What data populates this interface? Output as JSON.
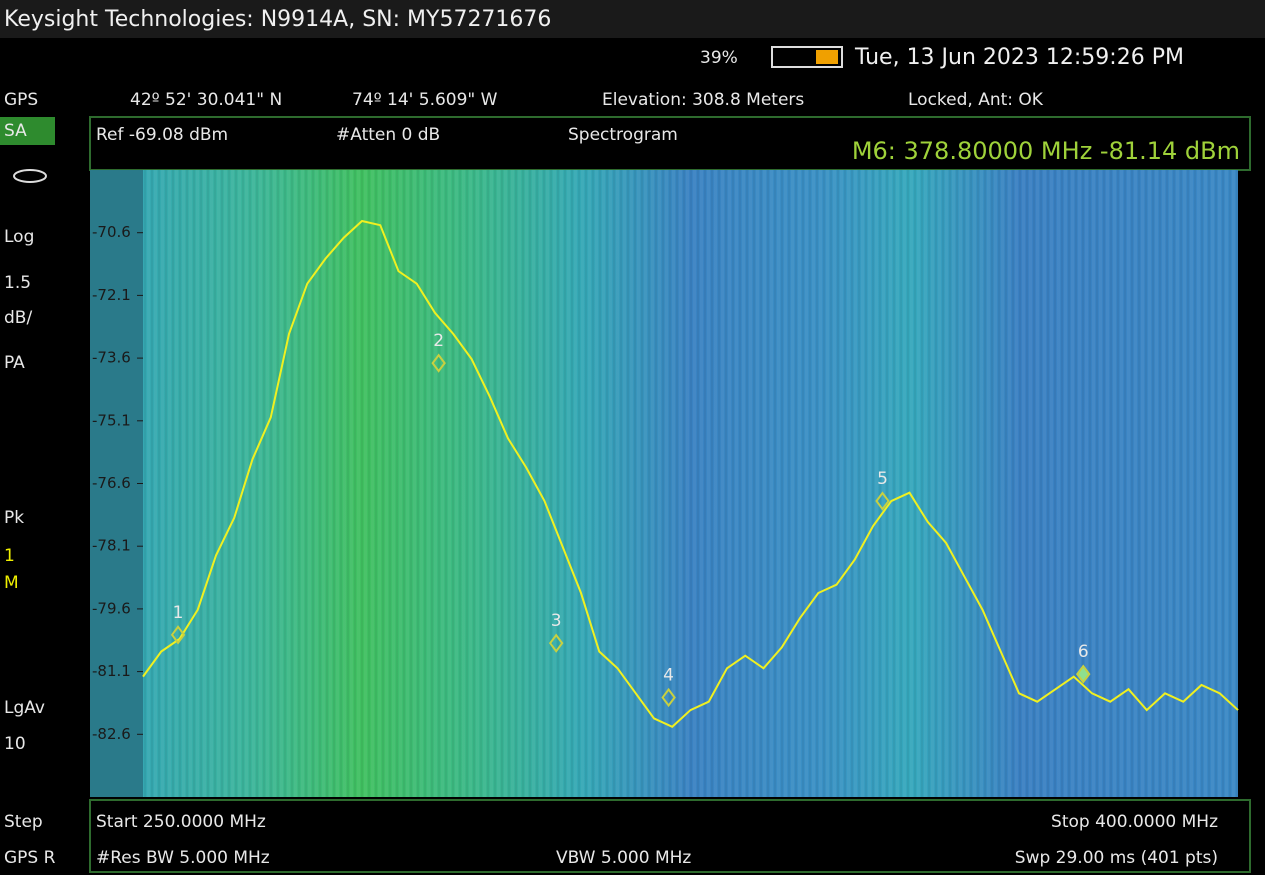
{
  "header": {
    "title": "Keysight Technologies: N9914A, SN: MY57271676",
    "battery": "39%",
    "datetime": "Tue, 13 Jun 2023 12:59:26 PM"
  },
  "gps": {
    "label": "GPS",
    "latitude": "42º 52' 30.041\" N",
    "longitude": "74º 14' 5.609\" W",
    "elevation": "Elevation: 308.8 Meters",
    "status": "Locked, Ant: OK"
  },
  "side_panel": [
    "SA",
    "Log",
    "1.5",
    "dB/",
    "PA",
    "Pk",
    "1",
    "M",
    "LgAv",
    "10",
    "Step",
    "GPS R"
  ],
  "settings": {
    "ref": "Ref -69.08 dBm",
    "atten": "#Atten 0 dB",
    "mode": "Spectrogram",
    "marker_readout": "M6:  378.80000 MHz  -81.14 dBm"
  },
  "footer": {
    "start": "Start 250.0000 MHz",
    "stop": "Stop 400.0000 MHz",
    "rbw": "#Res BW 5.000 MHz",
    "vbw": "VBW 5.000 MHz",
    "sweep": "Swp 29.00 ms (401 pts)"
  },
  "chart_data": {
    "type": "line",
    "color": "#f0f020",
    "xlim": [
      250,
      400
    ],
    "ylim": [
      -84.08,
      -69.08
    ],
    "yticks": [
      {
        "value": -70.58,
        "label": "-70.6"
      },
      {
        "value": -72.08,
        "label": "-72.1"
      },
      {
        "value": -73.58,
        "label": "-73.6"
      },
      {
        "value": -75.08,
        "label": "-75.1"
      },
      {
        "value": -76.58,
        "label": "-76.6"
      },
      {
        "value": -78.08,
        "label": "-78.1"
      },
      {
        "value": -79.58,
        "label": "-79.6"
      },
      {
        "value": -81.08,
        "label": "-81.1"
      },
      {
        "value": -82.58,
        "label": "-82.6"
      }
    ],
    "x": [
      250,
      252.5,
      255,
      257.5,
      260,
      262.5,
      265,
      267.5,
      270,
      272.5,
      275,
      277.5,
      280,
      282.5,
      285,
      287.5,
      290,
      292.5,
      295,
      297.5,
      300,
      302.5,
      305,
      307.5,
      310,
      312.5,
      315,
      317.5,
      320,
      322.5,
      325,
      327.5,
      330,
      332.5,
      335,
      337.5,
      340,
      342.5,
      345,
      347.5,
      350,
      352.5,
      355,
      357.5,
      360,
      362.5,
      365,
      367.5,
      370,
      372.5,
      375,
      377.5,
      380,
      382.5,
      385,
      387.5,
      390,
      392.5,
      395,
      397.5,
      400
    ],
    "values": [
      -81.2,
      -80.6,
      -80.3,
      -79.6,
      -78.3,
      -77.4,
      -76.0,
      -75.0,
      -73.0,
      -71.8,
      -71.2,
      -70.7,
      -70.3,
      -70.4,
      -71.5,
      -71.8,
      -72.5,
      -73.0,
      -73.6,
      -74.5,
      -75.5,
      -76.2,
      -77.0,
      -78.1,
      -79.2,
      -80.6,
      -81.0,
      -81.6,
      -82.2,
      -82.4,
      -82.0,
      -81.8,
      -81.0,
      -80.7,
      -81.0,
      -80.5,
      -79.8,
      -79.2,
      -79.0,
      -78.4,
      -77.6,
      -77.0,
      -76.8,
      -77.5,
      -78.0,
      -78.8,
      -79.6,
      -80.6,
      -81.6,
      -81.8,
      -81.5,
      -81.2,
      -81.6,
      -81.8,
      -81.5,
      -82.0,
      -81.6,
      -81.8,
      -81.4,
      -81.6,
      -82.0
    ],
    "markers": [
      {
        "label": "1",
        "x": 254.8,
        "y": -80.2
      },
      {
        "label": "2",
        "x": 290.5,
        "y": -73.7
      },
      {
        "label": "3",
        "x": 306.6,
        "y": -80.4
      },
      {
        "label": "4",
        "x": 322,
        "y": -81.7
      },
      {
        "label": "5",
        "x": 351.3,
        "y": -77.0
      },
      {
        "label": "6",
        "x": 378.8,
        "y": -81.14
      }
    ]
  }
}
